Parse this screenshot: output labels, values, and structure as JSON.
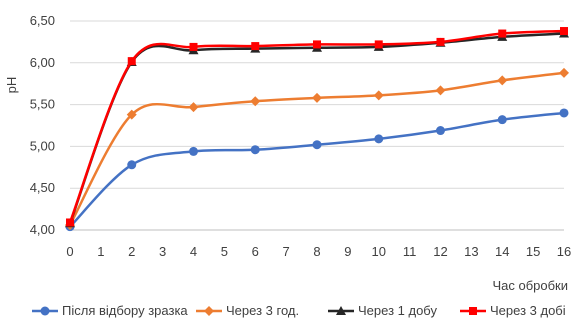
{
  "chart_data": {
    "type": "line",
    "title": "",
    "xlabel": "Час обробки",
    "ylabel": "pH",
    "x": [
      0,
      2,
      4,
      6,
      8,
      10,
      12,
      14,
      16
    ],
    "x_ticks": [
      "0",
      "1",
      "2",
      "3",
      "4",
      "5",
      "6",
      "7",
      "8",
      "9",
      "10",
      "11",
      "12",
      "13",
      "14",
      "15",
      "16"
    ],
    "y_ticks": [
      "4,00",
      "4,50",
      "5,00",
      "5,50",
      "6,00",
      "6,50"
    ],
    "xlim": [
      0,
      16
    ],
    "ylim": [
      4.0,
      6.5
    ],
    "grid": true,
    "legend_position": "bottom",
    "series": [
      {
        "name": "Після відбору зразка",
        "color": "#4472C4",
        "marker": "circle",
        "values": [
          4.04,
          4.78,
          4.94,
          4.96,
          5.02,
          5.09,
          5.19,
          5.32,
          5.4
        ]
      },
      {
        "name": "Через 3 год.",
        "color": "#ED7D31",
        "marker": "diamond",
        "values": [
          4.06,
          5.38,
          5.47,
          5.54,
          5.58,
          5.61,
          5.67,
          5.79,
          5.88
        ]
      },
      {
        "name": "Через 1 добу",
        "color": "#262626",
        "marker": "triangle",
        "values": [
          4.08,
          6.01,
          6.15,
          6.17,
          6.18,
          6.19,
          6.24,
          6.31,
          6.35
        ]
      },
      {
        "name": "Через 3 добі",
        "color": "#FF0000",
        "marker": "square",
        "values": [
          4.09,
          6.02,
          6.19,
          6.2,
          6.22,
          6.22,
          6.25,
          6.35,
          6.38
        ]
      }
    ]
  }
}
